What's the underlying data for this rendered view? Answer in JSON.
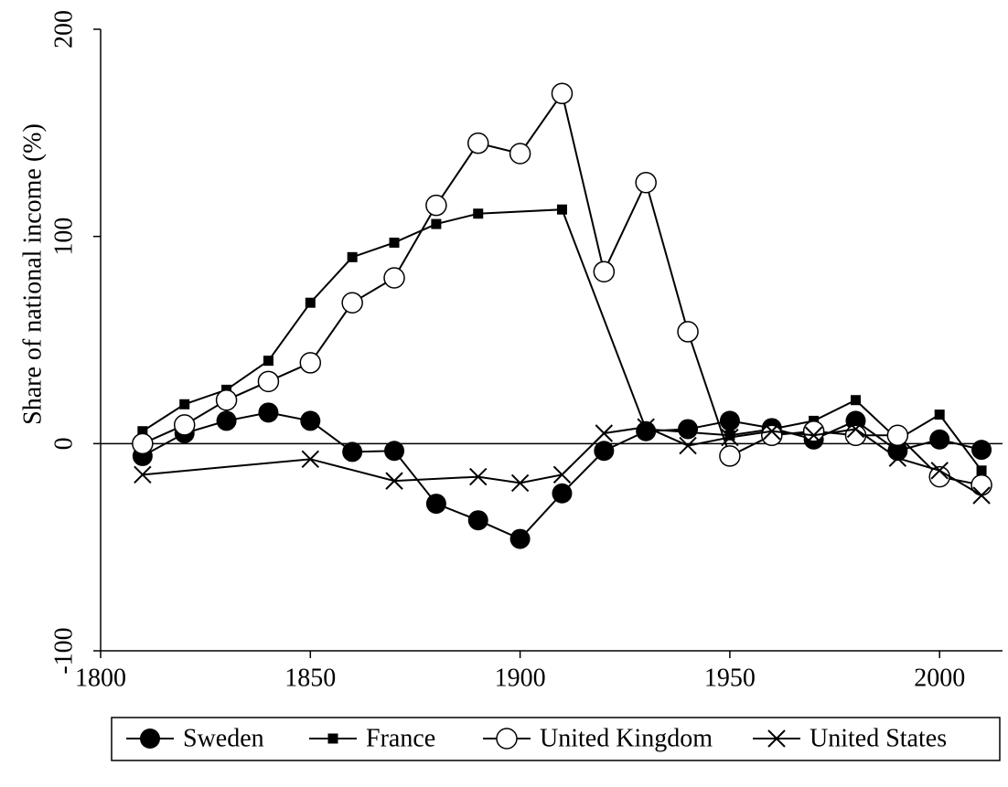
{
  "chart_data": {
    "type": "line",
    "y_label": "Share of national income (%)",
    "xlim": [
      1800,
      2015
    ],
    "xticks": [
      1800,
      1850,
      1900,
      1950,
      2000
    ],
    "ylim": [
      -100,
      200
    ],
    "yticks": [
      -100,
      0,
      100,
      200
    ],
    "reference_line": 0,
    "series": [
      {
        "name": "Sweden",
        "color": "#000000",
        "marker": "filled-circle",
        "x": [
          1810,
          1820,
          1830,
          1840,
          1850,
          1860,
          1870,
          1880,
          1890,
          1900,
          1910,
          1920,
          1930,
          1940,
          1950,
          1960,
          1970,
          1980,
          1990,
          2000,
          2010
        ],
        "values": [
          -6,
          5,
          11,
          15,
          11,
          -4,
          -3.5,
          -29,
          -37,
          -46,
          -24,
          -3.5,
          6,
          7,
          11,
          7.5,
          2,
          11,
          -3.5,
          2,
          -3
        ]
      },
      {
        "name": "France",
        "color": "#000000",
        "marker": "square",
        "x": [
          1810,
          1820,
          1830,
          1840,
          1850,
          1860,
          1870,
          1880,
          1890,
          1910,
          1930,
          1950,
          1960,
          1970,
          1980,
          1990,
          2000,
          2010
        ],
        "values": [
          6,
          19,
          26,
          40,
          68,
          90,
          97,
          106,
          111,
          113,
          7,
          4,
          7,
          11,
          21,
          2,
          14,
          -13
        ]
      },
      {
        "name": "United Kingdom",
        "color": "#000000",
        "marker": "open-circle",
        "x": [
          1810,
          1820,
          1830,
          1840,
          1850,
          1860,
          1870,
          1880,
          1890,
          1900,
          1910,
          1920,
          1930,
          1940,
          1950,
          1960,
          1970,
          1980,
          1990,
          2000,
          2010
        ],
        "values": [
          0,
          9,
          21,
          30,
          39,
          68,
          80,
          115,
          145,
          140,
          169,
          83,
          126,
          54,
          -6,
          4,
          6,
          4,
          4,
          -16,
          -20
        ]
      },
      {
        "name": "United States",
        "color": "#000000",
        "marker": "cross",
        "x": [
          1810,
          1850,
          1870,
          1890,
          1900,
          1910,
          1920,
          1930,
          1940,
          1950,
          1960,
          1970,
          1980,
          1990,
          2000,
          2010
        ],
        "values": [
          -15,
          -7.5,
          -18,
          -16,
          -19,
          -15,
          5,
          8,
          -1,
          3,
          6,
          4,
          7,
          -7,
          -13,
          -25
        ]
      }
    ]
  }
}
